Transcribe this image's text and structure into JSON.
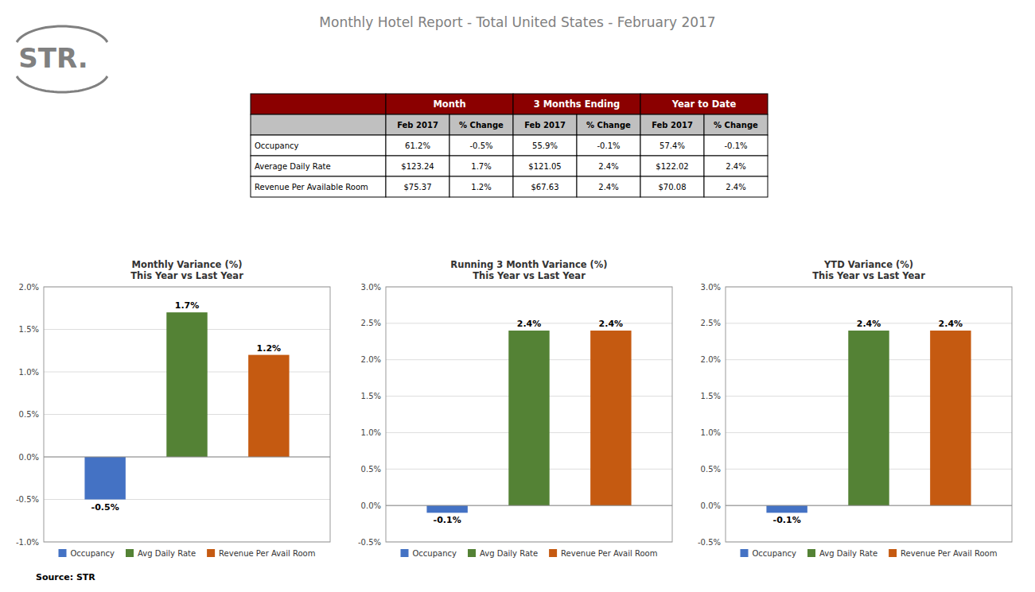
{
  "page": {
    "title": "Monthly Hotel Report - Total United States - February 2017",
    "title_color": "#808080",
    "background_color": "#ffffff",
    "logo_text": "STR.",
    "logo_color": "#808080",
    "source_text": "Source: STR",
    "table": {
      "group_headers": [
        "Month",
        "3 Months Ending",
        "Year to Date"
      ],
      "sub_headers": [
        "Feb 2017",
        "% Change",
        "Feb 2017",
        "% Change",
        "Feb 2017",
        "% Change"
      ],
      "row_labels": [
        "Occupancy",
        "Average Daily Rate",
        "Revenue Per Available Room"
      ],
      "rows": [
        [
          "61.2%",
          "-0.5%",
          "55.9%",
          "-0.1%",
          "57.4%",
          "-0.1%"
        ],
        [
          "$123.24",
          "1.7%",
          "$121.05",
          "2.4%",
          "$122.02",
          "2.4%"
        ],
        [
          "$75.37",
          "1.2%",
          "$67.63",
          "2.4%",
          "$70.08",
          "2.4%"
        ]
      ],
      "header_bg": "#8B0000",
      "header_text": "#ffffff",
      "subheader_bg": "#c0c0c0",
      "subheader_text": "#000000",
      "row_bg": "#ffffff",
      "row_text": "#000000",
      "border_color": "#000000"
    }
  },
  "chart_data": [
    {
      "type": "bar",
      "title": "Monthly Variance (%)\nThis Year vs Last Year",
      "categories": [
        "Occupancy",
        "Avg Daily Rate",
        "Revenue Per Avail Room"
      ],
      "values": [
        -0.5,
        1.7,
        1.2
      ],
      "value_labels": [
        "-0.5%",
        "1.7%",
        "1.2%"
      ],
      "colors": [
        "#4472C4",
        "#548235",
        "#C55A11"
      ],
      "ylim": [
        -1.0,
        2.0
      ],
      "yticks": [
        {
          "value": -1.0,
          "label": "-1.0%"
        },
        {
          "value": -0.5,
          "label": "-0.5%"
        },
        {
          "value": 0.0,
          "label": "0.0%"
        },
        {
          "value": 0.5,
          "label": "0.5%"
        },
        {
          "value": 1.0,
          "label": "1.0%"
        },
        {
          "value": 1.5,
          "label": "1.5%"
        },
        {
          "value": 2.0,
          "label": "2.0%"
        }
      ],
      "grid": true,
      "data_labels": true,
      "tick_labels": "y",
      "legend": "bottom"
    },
    {
      "type": "bar",
      "title": "Running 3 Month Variance (%)\nThis Year vs Last Year",
      "categories": [
        "Occupancy",
        "Avg Daily Rate",
        "Revenue Per Avail Room"
      ],
      "values": [
        -0.1,
        2.4,
        2.4
      ],
      "value_labels": [
        "-0.1%",
        "2.4%",
        "2.4%"
      ],
      "colors": [
        "#4472C4",
        "#548235",
        "#C55A11"
      ],
      "ylim": [
        -0.5,
        3.0
      ],
      "yticks": [
        {
          "value": -0.5,
          "label": "-0.5%"
        },
        {
          "value": 0.0,
          "label": "0.0%"
        },
        {
          "value": 0.5,
          "label": "0.5%"
        },
        {
          "value": 1.0,
          "label": "1.0%"
        },
        {
          "value": 1.5,
          "label": "1.5%"
        },
        {
          "value": 2.0,
          "label": "2.0%"
        },
        {
          "value": 2.5,
          "label": "2.5%"
        },
        {
          "value": 3.0,
          "label": "3.0%"
        }
      ],
      "grid": true,
      "data_labels": true,
      "tick_labels": "y",
      "legend": "bottom"
    },
    {
      "type": "bar",
      "title": "YTD Variance (%)\nThis Year vs Last Year",
      "categories": [
        "Occupancy",
        "Avg Daily Rate",
        "Revenue Per Avail Room"
      ],
      "values": [
        -0.1,
        2.4,
        2.4
      ],
      "value_labels": [
        "-0.1%",
        "2.4%",
        "2.4%"
      ],
      "colors": [
        "#4472C4",
        "#548235",
        "#C55A11"
      ],
      "ylim": [
        -0.5,
        3.0
      ],
      "yticks": [
        {
          "value": -0.5,
          "label": "-0.5%"
        },
        {
          "value": 0.0,
          "label": "0.0%"
        },
        {
          "value": 0.5,
          "label": "0.5%"
        },
        {
          "value": 1.0,
          "label": "1.0%"
        },
        {
          "value": 1.5,
          "label": "1.5%"
        },
        {
          "value": 2.0,
          "label": "2.0%"
        },
        {
          "value": 2.5,
          "label": "2.5%"
        },
        {
          "value": 3.0,
          "label": "3.0%"
        }
      ],
      "grid": true,
      "data_labels": true,
      "tick_labels": "y",
      "legend": "bottom"
    }
  ]
}
